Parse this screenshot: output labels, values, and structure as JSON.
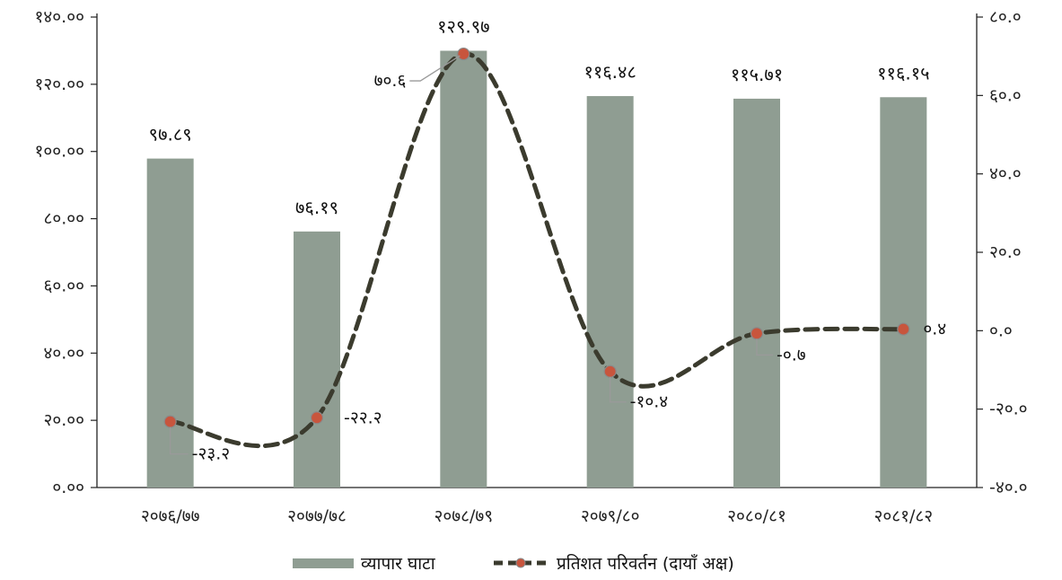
{
  "chart_data": {
    "type": "bar",
    "categories": [
      "२०७६/७७",
      "२०७७/७८",
      "२०७८/७९",
      "२०७९/८०",
      "२०८०/८१",
      "२०८१/८२"
    ],
    "series": [
      {
        "name": "व्यापार घाटा",
        "type": "bar",
        "axis": "left",
        "values": [
          97.89,
          76.19,
          129.97,
          116.48,
          115.71,
          116.15
        ],
        "labels": [
          "९७.८९",
          "७६.१९",
          "१२९.९७",
          "११६.४८",
          "११५.७१",
          "११६.१५"
        ]
      },
      {
        "name": "प्रतिशत परिवर्तन (दायाँ अक्ष)",
        "type": "line",
        "axis": "right",
        "values": [
          -23.2,
          -22.2,
          70.6,
          -10.4,
          -0.7,
          0.4
        ],
        "labels": [
          "-२३.२",
          "-२२.२",
          "७०.६",
          "-१०.४",
          "-०.७",
          "०.४"
        ]
      }
    ],
    "left_axis": {
      "ylim": [
        0,
        140
      ],
      "ticks": [
        0,
        20,
        40,
        60,
        80,
        100,
        120,
        140
      ],
      "tick_labels": [
        "०.००",
        "२०.००",
        "४०.००",
        "६०.००",
        "८०.००",
        "१००.००",
        "१२०.००",
        "१४०.००"
      ]
    },
    "right_axis": {
      "ylim": [
        -40,
        80
      ],
      "ticks": [
        -40,
        -20,
        0,
        20,
        40,
        60,
        80
      ],
      "tick_labels": [
        "-४०.०",
        "-२०.०",
        "०.०",
        "२०.०",
        "४०.०",
        "६०.०",
        "८०.०"
      ]
    },
    "grid": false,
    "legend_position": "bottom-center",
    "colors": {
      "bar": "#8f9d92",
      "line": "#3b3b2e",
      "marker_fill": "#c8553d",
      "marker_stroke": "#8a8a8a",
      "axis": "#222222"
    }
  },
  "legend": {
    "bar_label": "व्यापार घाटा",
    "line_label": "प्रतिशत परिवर्तन (दायाँ अक्ष)"
  }
}
